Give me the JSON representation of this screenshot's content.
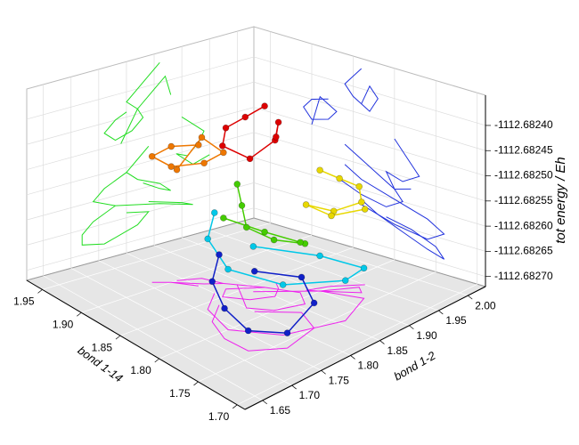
{
  "chart_data": {
    "type": "scatter3d",
    "xlabel": "bond 1-14",
    "ylabel": "bond 1-2",
    "zlabel": "tot energy / Eh",
    "xlim": [
      1.97,
      1.69
    ],
    "ylim": [
      1.62,
      2.03
    ],
    "zlim": [
      -1112.68272,
      -1112.68234
    ],
    "xticks": [
      1.95,
      {
        "value": 1.9,
        "label": "1.90"
      },
      1.85,
      {
        "value": 1.8,
        "label": "1.80"
      },
      1.75,
      {
        "value": 1.7,
        "label": "1.70"
      }
    ],
    "yticks": [
      1.65,
      {
        "value": 1.7,
        "label": "1.70"
      },
      1.75,
      {
        "value": 1.8,
        "label": "1.80"
      },
      1.85,
      {
        "value": 1.9,
        "label": "1.90"
      },
      1.95,
      {
        "value": 2.0,
        "label": "2.00"
      }
    ],
    "zticks": [
      {
        "value": -1112.6824,
        "label": "-1112.68240"
      },
      -1112.68245,
      {
        "value": -1112.6825,
        "label": "-1112.68250"
      },
      -1112.68255,
      {
        "value": -1112.6826,
        "label": "-1112.68260"
      },
      -1112.68265,
      {
        "value": -1112.6827,
        "label": "-1112.68270"
      }
    ],
    "grid": true,
    "floor_color": "#e6e6e6",
    "projection_colors": {
      "left_wall": "#22dd22",
      "right_wall": "#2233dd",
      "floor": "#ee22ee"
    },
    "series": [
      {
        "color": "#dd0000",
        "x": [
          1.84,
          1.85,
          1.86,
          1.85,
          1.83,
          1.82,
          1.83,
          1.84
        ],
        "y": [
          1.86,
          1.84,
          1.82,
          1.8,
          1.82,
          1.85,
          1.87,
          1.88
        ],
        "z": [
          -1112.68236,
          -1112.68238,
          -1112.6824,
          -1112.68242,
          -1112.68244,
          -1112.68241,
          -1112.68239,
          -1112.68243
        ]
      },
      {
        "color": "#ee7700",
        "x": [
          1.88,
          1.9,
          1.91,
          1.9,
          1.88,
          1.87,
          1.89,
          1.9
        ],
        "y": [
          1.8,
          1.78,
          1.76,
          1.78,
          1.81,
          1.83,
          1.82,
          1.79
        ],
        "z": [
          -1112.68244,
          -1112.68245,
          -1112.68247,
          -1112.68249,
          -1112.68248,
          -1112.68246,
          -1112.68244,
          -1112.6825
        ]
      },
      {
        "color": "#e8d800",
        "x": [
          1.8,
          1.79,
          1.78,
          1.77,
          1.79,
          1.81,
          1.8,
          1.78
        ],
        "y": [
          1.9,
          1.92,
          1.94,
          1.93,
          1.91,
          1.89,
          1.92,
          1.95
        ],
        "z": [
          -1112.68248,
          -1112.6825,
          -1112.68252,
          -1112.68254,
          -1112.68256,
          -1112.68255,
          -1112.68258,
          -1112.68257
        ]
      },
      {
        "color": "#44cc00",
        "x": [
          1.86,
          1.84,
          1.82,
          1.8,
          1.79,
          1.81,
          1.84,
          1.87
        ],
        "y": [
          1.84,
          1.82,
          1.8,
          1.82,
          1.86,
          1.88,
          1.86,
          1.83
        ],
        "z": [
          -1112.68252,
          -1112.68254,
          -1112.68256,
          -1112.68258,
          -1112.6826,
          -1112.68262,
          -1112.68261,
          -1112.68259
        ]
      },
      {
        "color": "#00c8e8",
        "x": [
          1.86,
          1.84,
          1.8,
          1.76,
          1.74,
          1.76,
          1.8,
          1.84
        ],
        "y": [
          1.8,
          1.76,
          1.74,
          1.78,
          1.86,
          1.92,
          1.9,
          1.84
        ],
        "z": [
          -1112.68256,
          -1112.68258,
          -1112.6826,
          -1112.68262,
          -1112.68264,
          -1112.68266,
          -1112.68265,
          -1112.68263
        ]
      },
      {
        "color": "#1020c8",
        "x": [
          1.84,
          1.82,
          1.79,
          1.76,
          1.74,
          1.75,
          1.78,
          1.81
        ],
        "y": [
          1.78,
          1.74,
          1.72,
          1.72,
          1.76,
          1.82,
          1.84,
          1.8
        ],
        "z": [
          -1112.68262,
          -1112.68264,
          -1112.68266,
          -1112.68268,
          -1112.68269,
          -1112.68267,
          -1112.68265,
          -1112.68264
        ]
      }
    ]
  }
}
